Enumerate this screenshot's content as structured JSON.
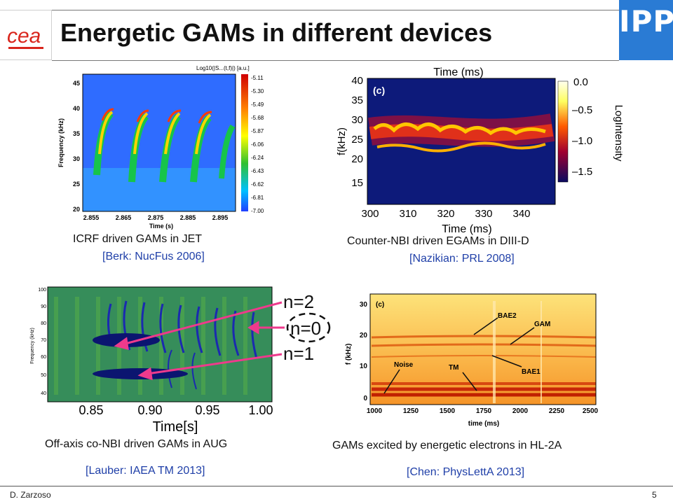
{
  "slide": {
    "title": "Energetic GAMs in different devices",
    "footer_author": "D. Zarzoso",
    "page_number": "5"
  },
  "logos": {
    "left_text": "cea",
    "right_text": "IPP",
    "right_color": "#2a7bd4"
  },
  "panels": {
    "jet": {
      "caption": "ICRF driven GAMs in JET",
      "citation": "[Berk: NucFus 2006]",
      "colorbar_title": "Log10(|S...(t,f)|) [a.u.]",
      "ylabel": "Frequency (kHz)",
      "xlabel": "Time (s)",
      "yticks": [
        "45",
        "40",
        "35",
        "30",
        "25",
        "20"
      ],
      "xticks": [
        "2.855",
        "2.865",
        "2.875",
        "2.885",
        "2.895"
      ],
      "colorbar_ticks": [
        "-5.11",
        "-5.30",
        "-5.49",
        "-5.68",
        "-5.87",
        "-6.06",
        "-6.24",
        "-6.43",
        "-6.62",
        "-6.81",
        "-7.00"
      ]
    },
    "diiid": {
      "caption": "Counter-NBI driven EGAMs in DIII-D",
      "citation": "[Nazikian: PRL 2008]",
      "top_label": "Time (ms)",
      "xlabel": "Time (ms)",
      "ylabel": "f(kHz)",
      "panel_tag": "(c)",
      "yticks": [
        "40",
        "35",
        "30",
        "25",
        "20",
        "15"
      ],
      "xticks": [
        "300",
        "310",
        "320",
        "330",
        "340"
      ],
      "colorbar_label": "LogIntensity",
      "colorbar_ticks": [
        "0.0",
        "–0.5",
        "–1.0",
        "–1.5"
      ]
    },
    "aug": {
      "caption": "Off-axis co-NBI driven GAMs in AUG",
      "citation": "[Lauber: IAEA TM 2013]",
      "xlabel": "Time[s]",
      "ylabel": "Frequency (kHz)",
      "xticks": [
        "0.85",
        "0.90",
        "0.95",
        "1.00"
      ],
      "yticks": [
        "100",
        "90",
        "80",
        "70",
        "60",
        "50",
        "40"
      ],
      "labels": [
        "n=2",
        "n=0",
        "n=1"
      ]
    },
    "hl2a": {
      "caption": "GAMs excited by energetic electrons in HL-2A",
      "citation": "[Chen: PhysLettA 2013]",
      "panel_tag": "(c)",
      "xlabel": "time (ms)",
      "ylabel": "f (kHz)",
      "yticks": [
        "30",
        "20",
        "10",
        "0"
      ],
      "xticks": [
        "1000",
        "1250",
        "1500",
        "1750",
        "2000",
        "2250",
        "2500"
      ],
      "annotations": [
        "BAE2",
        "GAM",
        "Noise",
        "TM",
        "BAE1"
      ]
    }
  }
}
